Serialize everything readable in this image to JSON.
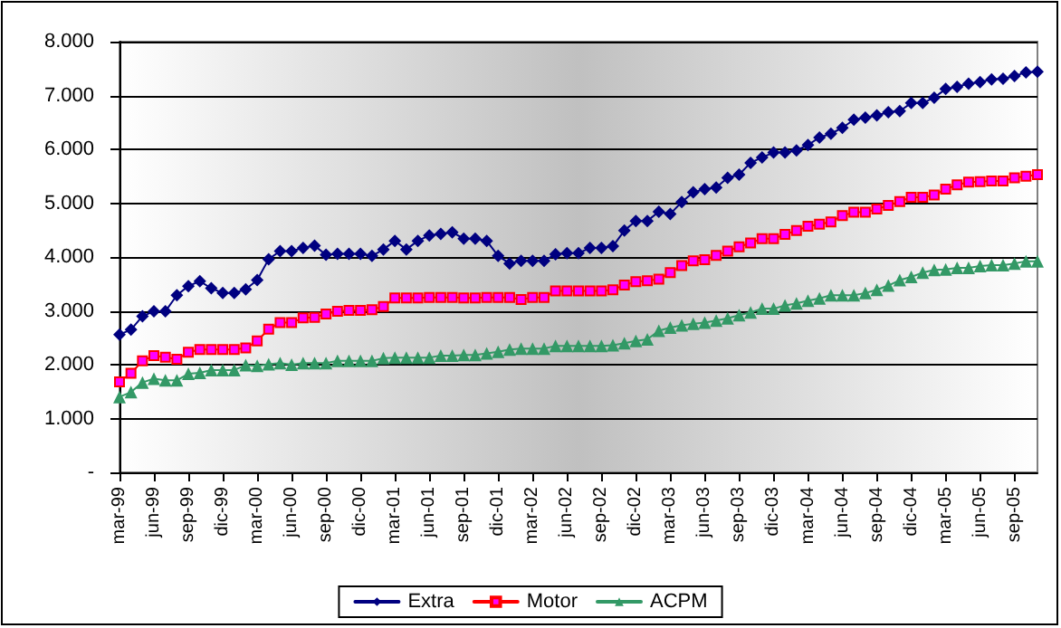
{
  "chart_data": {
    "type": "line",
    "categories": [
      "mar-99",
      null,
      null,
      "jun-99",
      null,
      null,
      "sep-99",
      null,
      null,
      "dic-99",
      null,
      null,
      "mar-00",
      null,
      null,
      "jun-00",
      null,
      null,
      "sep-00",
      null,
      null,
      "dic-00",
      null,
      null,
      "mar-01",
      null,
      null,
      "jun-01",
      null,
      null,
      "sep-01",
      null,
      null,
      "dic-01",
      null,
      null,
      "mar-02",
      null,
      null,
      "jun-02",
      null,
      null,
      "sep-02",
      null,
      null,
      "dic-02",
      null,
      null,
      "mar-03",
      null,
      null,
      "jun-03",
      null,
      null,
      "sep-03",
      null,
      null,
      "dic-03",
      null,
      null,
      "mar-04",
      null,
      null,
      "jun-04",
      null,
      null,
      "sep-04",
      null,
      null,
      "dic-04",
      null,
      null,
      "mar-05",
      null,
      null,
      "jun-05",
      null,
      null,
      "sep-05",
      null,
      null
    ],
    "series": [
      {
        "name": "Extra",
        "color": "#000080",
        "marker": "diamond",
        "values": [
          2560,
          2650,
          2900,
          2990,
          2990,
          3290,
          3460,
          3550,
          3420,
          3330,
          3330,
          3400,
          3570,
          3960,
          4110,
          4110,
          4170,
          4210,
          4040,
          4060,
          4060,
          4060,
          4020,
          4140,
          4300,
          4140,
          4300,
          4400,
          4430,
          4460,
          4340,
          4340,
          4300,
          4020,
          3880,
          3930,
          3930,
          3930,
          4050,
          4070,
          4070,
          4170,
          4170,
          4200,
          4490,
          4670,
          4670,
          4840,
          4800,
          5020,
          5200,
          5260,
          5290,
          5470,
          5530,
          5750,
          5850,
          5940,
          5940,
          5980,
          6080,
          6220,
          6290,
          6400,
          6550,
          6590,
          6630,
          6690,
          6710,
          6860,
          6860,
          6960,
          7120,
          7160,
          7220,
          7250,
          7300,
          7310,
          7360,
          7430,
          7440
        ]
      },
      {
        "name": "Motor",
        "color": "#ff0000",
        "marker": "square",
        "values": [
          1680,
          1840,
          2070,
          2170,
          2140,
          2100,
          2230,
          2280,
          2280,
          2280,
          2280,
          2310,
          2440,
          2660,
          2780,
          2780,
          2870,
          2880,
          2940,
          2990,
          3010,
          3010,
          3020,
          3080,
          3240,
          3240,
          3240,
          3250,
          3250,
          3250,
          3240,
          3240,
          3250,
          3250,
          3250,
          3210,
          3250,
          3250,
          3370,
          3370,
          3370,
          3370,
          3370,
          3390,
          3480,
          3540,
          3560,
          3590,
          3710,
          3840,
          3930,
          3950,
          4030,
          4110,
          4190,
          4260,
          4340,
          4340,
          4420,
          4490,
          4570,
          4610,
          4650,
          4770,
          4830,
          4830,
          4890,
          4960,
          5030,
          5110,
          5110,
          5150,
          5260,
          5340,
          5390,
          5400,
          5410,
          5410,
          5470,
          5500,
          5530
        ]
      },
      {
        "name": "ACPM",
        "color": "#339966",
        "marker": "triangle",
        "values": [
          1400,
          1490,
          1670,
          1740,
          1710,
          1710,
          1830,
          1850,
          1900,
          1900,
          1900,
          1990,
          1980,
          2010,
          2030,
          2000,
          2030,
          2030,
          2030,
          2070,
          2070,
          2070,
          2070,
          2120,
          2130,
          2130,
          2130,
          2130,
          2170,
          2170,
          2180,
          2180,
          2210,
          2240,
          2280,
          2300,
          2300,
          2300,
          2350,
          2350,
          2350,
          2350,
          2350,
          2360,
          2400,
          2440,
          2470,
          2630,
          2690,
          2730,
          2760,
          2780,
          2820,
          2860,
          2920,
          2970,
          3040,
          3040,
          3100,
          3140,
          3190,
          3230,
          3290,
          3290,
          3290,
          3330,
          3390,
          3470,
          3570,
          3630,
          3710,
          3760,
          3770,
          3800,
          3800,
          3830,
          3850,
          3850,
          3880,
          3920,
          3920
        ]
      }
    ],
    "ylim": [
      0,
      8000
    ],
    "yticks": [
      {
        "value": 0,
        "label": "-"
      },
      {
        "value": 1000,
        "label": "1.000"
      },
      {
        "value": 2000,
        "label": "2.000"
      },
      {
        "value": 3000,
        "label": "3.000"
      },
      {
        "value": 4000,
        "label": "4.000"
      },
      {
        "value": 5000,
        "label": "5.000"
      },
      {
        "value": 6000,
        "label": "6.000"
      },
      {
        "value": 7000,
        "label": "7.000"
      },
      {
        "value": 8000,
        "label": "8.000"
      }
    ],
    "grid": "y",
    "legend": "bottom",
    "line_style": "solid"
  }
}
